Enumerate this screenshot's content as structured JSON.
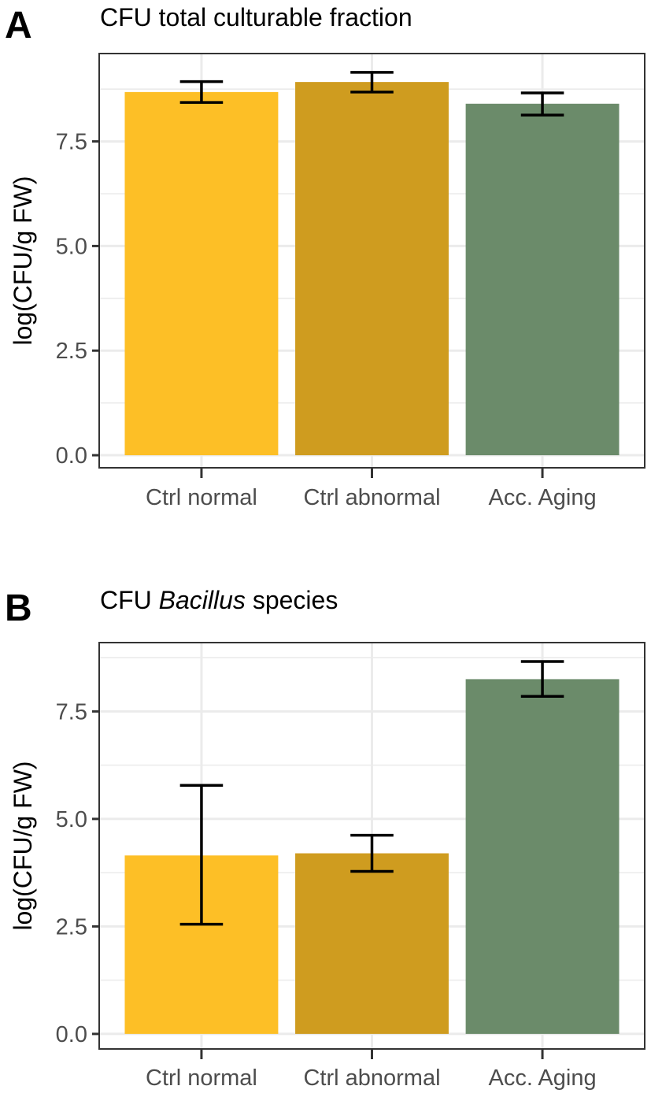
{
  "colors": {
    "ctrl_normal": "#fdbf26",
    "ctrl_abnormal": "#cf9c1f",
    "acc_aging": "#6b8b6a",
    "error_bar": "#000000"
  },
  "chart_data": [
    {
      "panel": "A",
      "type": "bar",
      "title": "CFU total culturable fraction",
      "title_parts": [
        {
          "text": "CFU total culturable fraction",
          "italic": false
        }
      ],
      "xlabel": "",
      "ylabel": "log(CFU/g FW)",
      "ylim": [
        -0.3,
        9.6
      ],
      "yticks": [
        0.0,
        2.5,
        5.0,
        7.5
      ],
      "ytick_labels": [
        "0.0",
        "2.5",
        "5.0",
        "7.5"
      ],
      "grid": true,
      "categories": [
        "Ctrl normal",
        "Ctrl abnormal",
        "Acc. Aging"
      ],
      "values": [
        8.68,
        8.92,
        8.4
      ],
      "error_low": [
        8.43,
        8.68,
        8.13
      ],
      "error_high": [
        8.93,
        9.15,
        8.66
      ]
    },
    {
      "panel": "B",
      "type": "bar",
      "title": "CFU Bacillus species",
      "title_parts": [
        {
          "text": "CFU ",
          "italic": false
        },
        {
          "text": "Bacillus",
          "italic": true
        },
        {
          "text": " species",
          "italic": false
        }
      ],
      "xlabel": "",
      "ylabel": "log(CFU/g FW)",
      "ylim": [
        -0.35,
        9.1
      ],
      "yticks": [
        0.0,
        2.5,
        5.0,
        7.5
      ],
      "ytick_labels": [
        "0.0",
        "2.5",
        "5.0",
        "7.5"
      ],
      "grid": true,
      "categories": [
        "Ctrl normal",
        "Ctrl abnormal",
        "Acc. Aging"
      ],
      "values": [
        4.15,
        4.2,
        8.25
      ],
      "error_low": [
        2.55,
        3.78,
        7.85
      ],
      "error_high": [
        5.78,
        4.62,
        8.66
      ]
    }
  ]
}
